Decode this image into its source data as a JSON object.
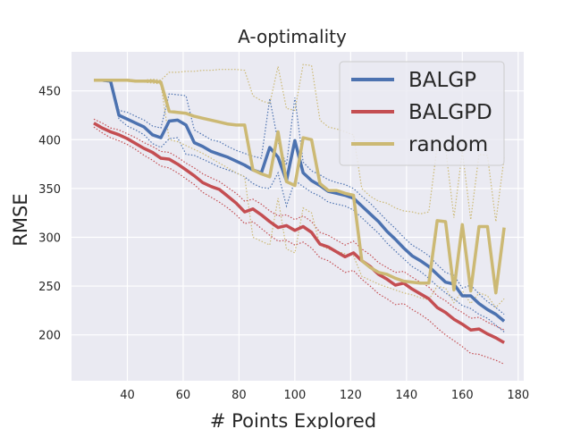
{
  "chart_data": {
    "type": "line",
    "title": "A-optimality",
    "xlabel": "# Points Explored",
    "ylabel": "RMSE",
    "xlim": [
      20,
      182
    ],
    "ylim": [
      153,
      490
    ],
    "xticks": [
      40,
      60,
      80,
      100,
      120,
      140,
      160,
      180
    ],
    "yticks": [
      200,
      250,
      300,
      350,
      400,
      450
    ],
    "grid": true,
    "legend_position": "top-right",
    "colors": {
      "plot_bg": "#eaeaf2",
      "grid": "#ffffff",
      "BALGP": "#4c72b0",
      "BALGPD": "#c44e52",
      "random": "#ccb974"
    },
    "series": [
      {
        "name": "BALGP",
        "color": "#4c72b0",
        "x": [
          28,
          31,
          34,
          37,
          40,
          43,
          46,
          49,
          52,
          55,
          58,
          61,
          64,
          67,
          70,
          73,
          76,
          79,
          82,
          85,
          88,
          91,
          94,
          97,
          100,
          103,
          106,
          109,
          112,
          115,
          118,
          121,
          124,
          127,
          130,
          133,
          136,
          139,
          142,
          145,
          148,
          151,
          154,
          157,
          160,
          163,
          166,
          169,
          172,
          175
        ],
        "values": [
          461,
          461,
          460,
          425,
          421,
          417,
          413,
          405,
          402,
          419,
          420,
          415,
          397,
          393,
          388,
          385,
          382,
          378,
          374,
          369,
          366,
          392,
          382,
          358,
          399,
          366,
          358,
          353,
          347,
          345,
          343,
          340,
          332,
          324,
          316,
          306,
          298,
          289,
          281,
          276,
          270,
          262,
          254,
          252,
          240,
          240,
          232,
          226,
          221,
          214
        ],
        "upper": [
          462,
          462,
          461,
          430,
          428,
          424,
          420,
          414,
          412,
          447,
          446,
          445,
          410,
          405,
          400,
          398,
          393,
          389,
          386,
          383,
          381,
          442,
          398,
          374,
          443,
          377,
          368,
          364,
          359,
          356,
          354,
          350,
          342,
          335,
          326,
          317,
          309,
          300,
          292,
          287,
          281,
          272,
          264,
          261,
          248,
          251,
          242,
          234,
          228,
          221
        ],
        "lower": [
          460,
          460,
          459,
          421,
          414,
          410,
          405,
          396,
          392,
          401,
          402,
          385,
          384,
          380,
          376,
          372,
          369,
          366,
          362,
          355,
          351,
          350,
          366,
          332,
          358,
          352,
          346,
          342,
          336,
          334,
          332,
          328,
          320,
          312,
          304,
          294,
          286,
          278,
          270,
          265,
          258,
          250,
          243,
          237,
          230,
          227,
          221,
          217,
          210,
          203
        ]
      },
      {
        "name": "BALGPD",
        "color": "#c44e52",
        "x": [
          28,
          31,
          34,
          37,
          40,
          43,
          46,
          49,
          52,
          55,
          58,
          61,
          64,
          67,
          70,
          73,
          76,
          79,
          82,
          85,
          88,
          91,
          94,
          97,
          100,
          103,
          106,
          109,
          112,
          115,
          118,
          121,
          124,
          127,
          130,
          133,
          136,
          139,
          142,
          145,
          148,
          151,
          154,
          157,
          160,
          163,
          166,
          169,
          172,
          175
        ],
        "values": [
          417,
          412,
          408,
          405,
          401,
          396,
          391,
          387,
          381,
          380,
          375,
          369,
          363,
          356,
          352,
          349,
          342,
          335,
          326,
          329,
          323,
          316,
          310,
          312,
          307,
          311,
          305,
          293,
          290,
          285,
          280,
          284,
          276,
          270,
          262,
          257,
          251,
          253,
          247,
          242,
          237,
          228,
          223,
          216,
          211,
          205,
          206,
          201,
          197,
          192
        ],
        "upper": [
          421,
          417,
          412,
          410,
          406,
          402,
          397,
          393,
          388,
          387,
          382,
          376,
          371,
          365,
          361,
          357,
          351,
          345,
          337,
          339,
          334,
          327,
          322,
          323,
          318,
          322,
          316,
          305,
          302,
          297,
          292,
          296,
          288,
          282,
          274,
          269,
          264,
          265,
          259,
          254,
          249,
          240,
          235,
          228,
          223,
          217,
          218,
          213,
          209,
          205
        ],
        "lower": [
          413,
          407,
          402,
          399,
          395,
          390,
          384,
          379,
          373,
          371,
          366,
          360,
          354,
          346,
          341,
          336,
          330,
          323,
          314,
          316,
          309,
          302,
          296,
          297,
          292,
          295,
          289,
          279,
          276,
          270,
          264,
          266,
          257,
          250,
          242,
          237,
          231,
          232,
          226,
          221,
          215,
          207,
          200,
          194,
          188,
          181,
          180,
          177,
          174,
          170
        ]
      },
      {
        "name": "random",
        "color": "#ccb974",
        "x": [
          28,
          31,
          34,
          37,
          40,
          43,
          46,
          49,
          52,
          55,
          58,
          61,
          64,
          67,
          70,
          73,
          76,
          79,
          82,
          85,
          88,
          91,
          94,
          97,
          100,
          103,
          106,
          109,
          112,
          115,
          118,
          121,
          124,
          127,
          130,
          133,
          136,
          139,
          142,
          145,
          148,
          151,
          154,
          157,
          160,
          163,
          166,
          169,
          172,
          175
        ],
        "values": [
          461,
          461,
          461,
          461,
          461,
          460,
          460,
          460,
          459,
          429,
          428,
          427,
          424,
          422,
          420,
          418,
          416,
          415,
          415,
          369,
          365,
          362,
          408,
          357,
          353,
          402,
          400,
          355,
          348,
          348,
          345,
          343,
          276,
          269,
          264,
          262,
          258,
          255,
          254,
          253,
          253,
          317,
          316,
          246,
          313,
          245,
          311,
          311,
          243,
          310
        ],
        "upper": [
          462,
          462,
          462,
          462,
          462,
          461,
          461,
          462,
          461,
          469,
          469,
          470,
          470,
          471,
          471,
          472,
          472,
          472,
          471,
          445,
          440,
          437,
          475,
          432,
          430,
          477,
          476,
          420,
          413,
          411,
          408,
          405,
          350,
          342,
          337,
          335,
          330,
          327,
          326,
          324,
          326,
          394,
          392,
          320,
          388,
          318,
          385,
          384,
          316,
          382
        ],
        "lower": [
          460,
          460,
          460,
          460,
          460,
          459,
          459,
          458,
          457,
          400,
          398,
          394,
          390,
          386,
          381,
          376,
          371,
          366,
          362,
          300,
          296,
          292,
          340,
          288,
          284,
          330,
          325,
          292,
          288,
          286,
          283,
          281,
          260,
          256,
          252,
          249,
          246,
          243,
          241,
          238,
          236,
          250,
          248,
          233,
          245,
          232,
          243,
          240,
          228,
          237
        ]
      }
    ]
  }
}
